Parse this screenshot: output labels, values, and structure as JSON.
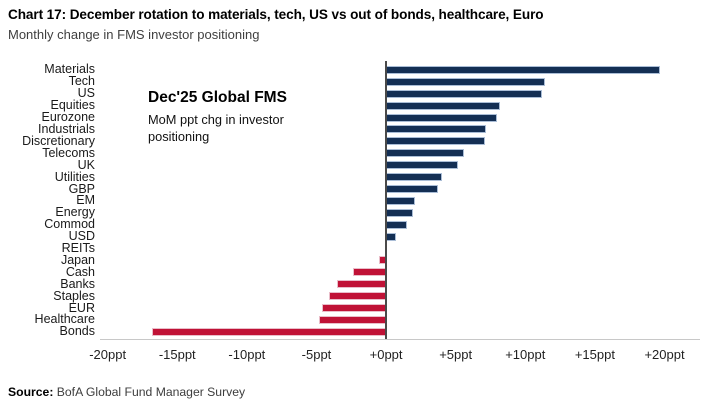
{
  "header": {
    "title": "Chart 17: December rotation to materials, tech, US vs out of bonds, healthcare, Euro",
    "subtitle": "Monthly change in FMS investor positioning"
  },
  "annotation": {
    "title": "Dec'25 Global FMS",
    "body": "MoM ppt chg in investor positioning"
  },
  "source": {
    "label": "Source:",
    "text": " BofA Global Fund Manager Survey"
  },
  "colors": {
    "positive_fill": "#142f54",
    "positive_border": "#aabdd6",
    "negative_fill": "#c01236",
    "negative_border": "#e9bdc9",
    "zero_axis": "#4a4a4a",
    "baseline": "#c8c8c8"
  },
  "chart_data": {
    "type": "bar",
    "orientation": "horizontal",
    "title": "Dec'25 Global FMS",
    "subtitle": "MoM ppt chg in investor positioning",
    "unit": "ppt",
    "categories": [
      "Materials",
      "Tech",
      "US",
      "Equities",
      "Eurozone",
      "Industrials",
      "Discretionary",
      "Telecoms",
      "UK",
      "Utilities",
      "GBP",
      "EM",
      "Energy",
      "Commod",
      "USD",
      "REITs",
      "Japan",
      "Cash",
      "Banks",
      "Staples",
      "EUR",
      "Healthcare",
      "Bonds"
    ],
    "values": [
      19.7,
      11.4,
      11.2,
      8.2,
      8.0,
      7.2,
      7.1,
      5.6,
      5.2,
      4.0,
      3.7,
      2.1,
      1.9,
      1.5,
      0.7,
      0.0,
      -0.5,
      -2.4,
      -3.5,
      -4.1,
      -4.6,
      -4.8,
      -16.8
    ],
    "xlim": [
      -20.55,
      22.55
    ],
    "xticks": {
      "values": [
        -20,
        -15,
        -10,
        -5,
        0,
        5,
        10,
        15,
        20
      ],
      "labels": [
        "-20ppt",
        "-15ppt",
        "-10ppt",
        "-5ppt",
        "+0ppt",
        "+5ppt",
        "+10ppt",
        "+15ppt",
        "+20ppt"
      ]
    },
    "grid": false,
    "legend": false,
    "positive_color": "#142f54",
    "negative_color": "#c01236"
  }
}
